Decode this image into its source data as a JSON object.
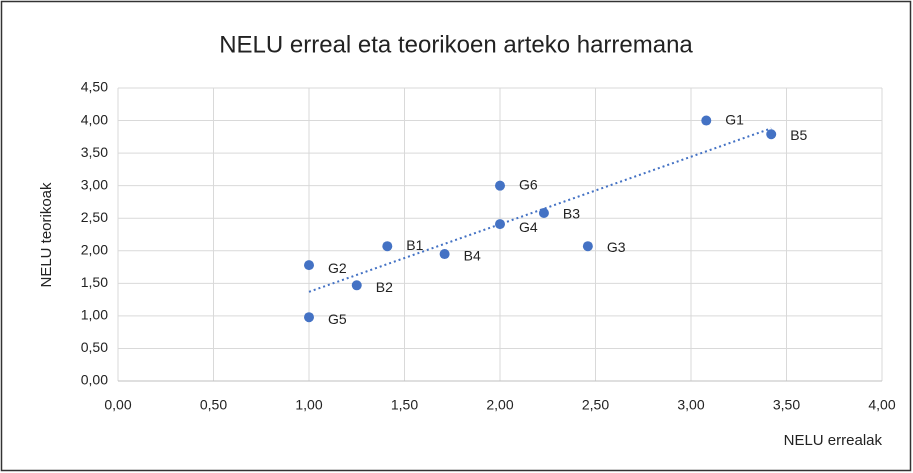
{
  "chart_data": {
    "type": "scatter",
    "title": "NELU erreal eta teorikoen arteko harremana",
    "x_label": "NELU errealak",
    "y_label": "NELU teorikoak",
    "point_labels": [
      "G1",
      "B5",
      "G6",
      "B3",
      "G4",
      "G3",
      "B1",
      "B4",
      "G2",
      "B2",
      "G5"
    ],
    "x": [
      3.08,
      3.42,
      2.0,
      2.23,
      2.0,
      2.46,
      1.41,
      1.71,
      1.0,
      1.25,
      1.0
    ],
    "values": [
      4.0,
      3.79,
      3.0,
      2.58,
      2.41,
      2.07,
      2.07,
      1.95,
      1.78,
      1.47,
      0.98
    ],
    "color": "#4472c4",
    "trendline": {
      "x": [
        1.0,
        3.42
      ],
      "y": [
        1.37,
        3.88
      ]
    },
    "xlim": [
      0,
      4
    ],
    "ylim": [
      0,
      4.5
    ],
    "xticks": [
      {
        "value": 0,
        "label": "0,00"
      },
      {
        "value": 0.5,
        "label": "0,50"
      },
      {
        "value": 1,
        "label": "1,00"
      },
      {
        "value": 1.5,
        "label": "1,50"
      },
      {
        "value": 2,
        "label": "2,00"
      },
      {
        "value": 2.5,
        "label": "2,50"
      },
      {
        "value": 3,
        "label": "3,00"
      },
      {
        "value": 3.5,
        "label": "3,50"
      },
      {
        "value": 4,
        "label": "4,00"
      }
    ],
    "yticks": [
      {
        "value": 0,
        "label": "0,00"
      },
      {
        "value": 0.5,
        "label": "0,50"
      },
      {
        "value": 1,
        "label": "1,00"
      },
      {
        "value": 1.5,
        "label": "1,50"
      },
      {
        "value": 2,
        "label": "2,00"
      },
      {
        "value": 2.5,
        "label": "2,50"
      },
      {
        "value": 3,
        "label": "3,00"
      },
      {
        "value": 3.5,
        "label": "3,50"
      },
      {
        "value": 4,
        "label": "4,00"
      },
      {
        "value": 4.5,
        "label": "4,50"
      }
    ],
    "grid": true
  }
}
